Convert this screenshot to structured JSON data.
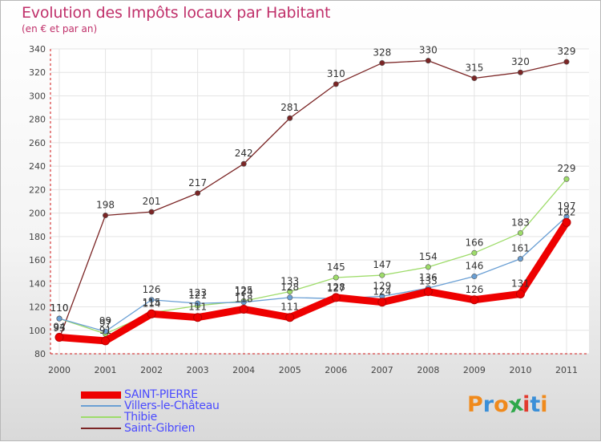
{
  "title": "Evolution des Impôts locaux par Habitant",
  "subtitle": "(en € et par an)",
  "logo_text": "Proxiti",
  "logo_colors": [
    "#f08a1c",
    "#3a8fd8",
    "#f08a1c",
    "#2fa84a",
    "#e23b2e",
    "#3a8fd8",
    "#f08a1c"
  ],
  "chart_data": {
    "type": "line",
    "title": "Evolution des Impôts locaux par Habitant",
    "subtitle": "(en € et par an)",
    "xlabel": "",
    "ylabel": "",
    "x": [
      "2000",
      "2001",
      "2002",
      "2003",
      "2004",
      "2005",
      "2006",
      "2007",
      "2008",
      "2009",
      "2010",
      "2011"
    ],
    "ylim": [
      80,
      340
    ],
    "yticks": [
      80,
      100,
      120,
      140,
      160,
      180,
      200,
      220,
      240,
      260,
      280,
      300,
      320,
      340
    ],
    "grid": true,
    "legend_position": "bottom-left",
    "series": [
      {
        "name": "SAINT-PIERRE",
        "color": "#ee0000",
        "values": [
          94,
          91,
          114,
          111,
          118,
          111,
          128,
          124,
          133,
          126,
          131,
          192
        ],
        "labels": [
          "94",
          "91",
          "114",
          "111",
          "118",
          "111",
          "128",
          "124",
          "133",
          "126",
          "131",
          "192"
        ]
      },
      {
        "name": "Villers-le-Château",
        "color": "#6a9fd4",
        "values": [
          110,
          99,
          126,
          123,
          124,
          128,
          127,
          129,
          136,
          146,
          161,
          197
        ],
        "labels": [
          "110",
          "99",
          "126",
          "123",
          "124",
          "128",
          "127",
          "129",
          "136",
          "146",
          "161",
          "197"
        ]
      },
      {
        "name": "Thibie",
        "color": "#9edc6a",
        "values": [
          110,
          97,
          115,
          121,
          125,
          133,
          145,
          147,
          154,
          166,
          183,
          229
        ],
        "labels": [
          "110",
          "97",
          "115",
          "121",
          "125",
          "133",
          "145",
          "147",
          "154",
          "166",
          "183",
          "229"
        ]
      },
      {
        "name": "Saint-Gibrien",
        "color": "#7b2525",
        "values": [
          93,
          198,
          201,
          217,
          242,
          281,
          310,
          328,
          330,
          315,
          320,
          329
        ],
        "labels": [
          "93",
          "198",
          "201",
          "217",
          "242",
          "281",
          "310",
          "328",
          "330",
          "315",
          "320",
          "329"
        ]
      }
    ]
  }
}
